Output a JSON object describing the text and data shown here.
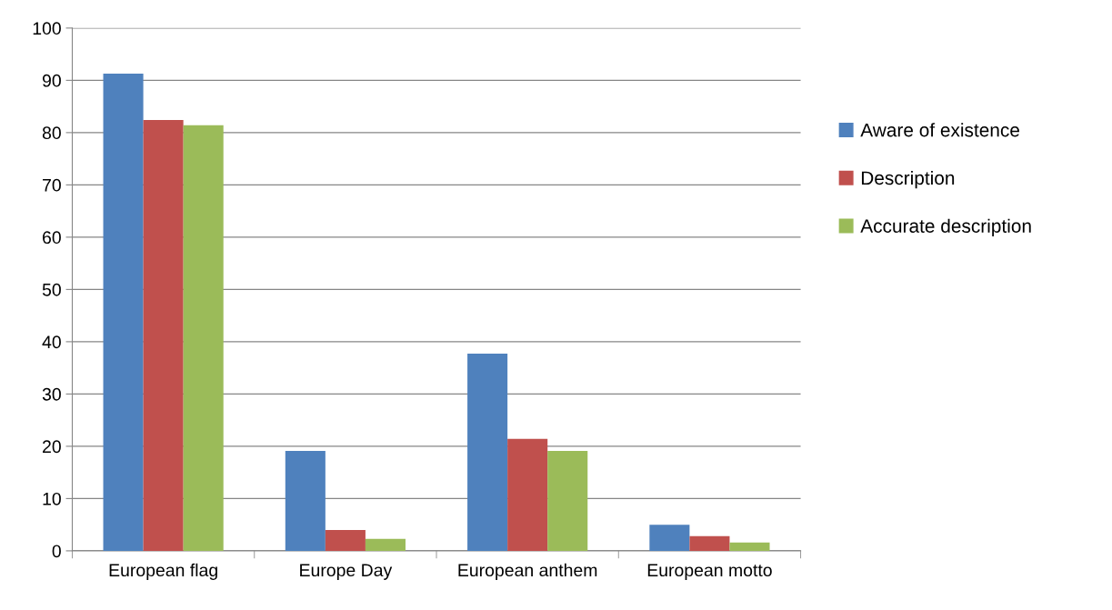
{
  "chart_data": {
    "type": "bar",
    "categories": [
      "European flag",
      "Europe Day",
      "European anthem",
      "European motto"
    ],
    "series": [
      {
        "name": "Aware of existence",
        "color": "#4f81bd",
        "values": [
          91.3,
          19.1,
          37.7,
          5.0
        ]
      },
      {
        "name": "Description",
        "color": "#c0504d",
        "values": [
          82.4,
          4.0,
          21.4,
          2.8
        ]
      },
      {
        "name": "Accurate description",
        "color": "#9bbb59",
        "values": [
          81.4,
          2.3,
          19.1,
          1.6
        ]
      }
    ],
    "ylim": [
      0,
      100
    ],
    "yticks": [
      0,
      10,
      20,
      30,
      40,
      50,
      60,
      70,
      80,
      90,
      100
    ],
    "grid": "y",
    "legend": "right"
  }
}
